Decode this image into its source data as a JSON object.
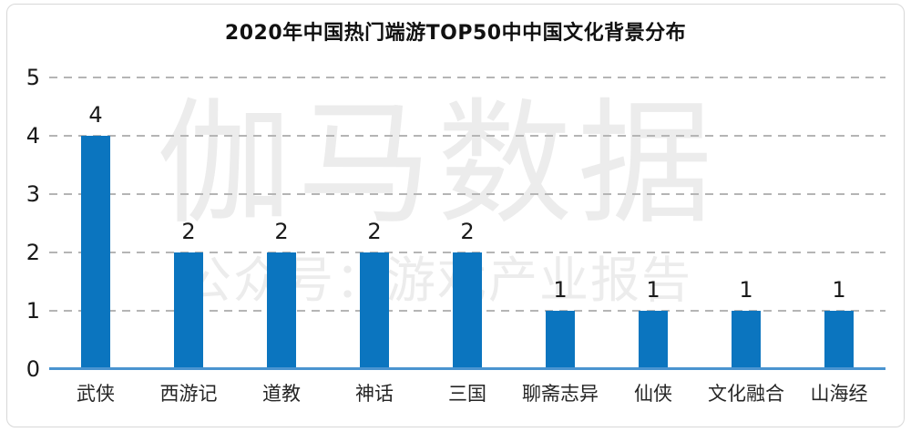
{
  "watermark": {
    "line1": "伽马数据",
    "line2": "公众号：游戏产业报告"
  },
  "chart_data": {
    "type": "bar",
    "title": "2020年中国热门端游TOP50中中国文化背景分布",
    "categories": [
      "武侠",
      "西游记",
      "道教",
      "神话",
      "三国",
      "聊斋志异",
      "仙侠",
      "文化融合",
      "山海经"
    ],
    "values": [
      4,
      2,
      2,
      2,
      2,
      1,
      1,
      1,
      1
    ],
    "data_labels": [
      4,
      2,
      2,
      2,
      2,
      1,
      1,
      1,
      1
    ],
    "xlabel": "",
    "ylabel": "",
    "y_ticks": [
      0,
      1,
      2,
      3,
      4,
      5
    ],
    "ylim": [
      0,
      5
    ],
    "grid": "horizontal-dashed",
    "legend": "none",
    "colors": {
      "bar": "#0b75bf",
      "baseline": "#4a94d0",
      "gridline": "#b5b5b5",
      "title_text": "#111111",
      "tick_text": "#1a1a1a",
      "category_text": "#262626",
      "watermark": "#ececec",
      "frame_border": "#d8d8d8",
      "background": "#ffffff"
    }
  }
}
